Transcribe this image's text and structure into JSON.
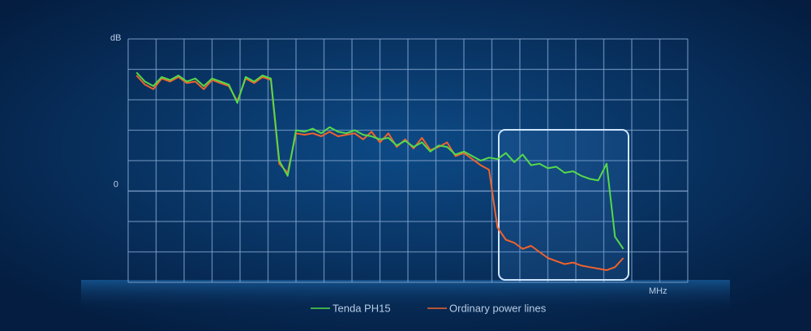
{
  "chart_data": {
    "type": "line",
    "y_label": "dB",
    "x_label": "MHz",
    "x": [
      0.3,
      0.6,
      0.9,
      1.2,
      1.5,
      1.8,
      2.1,
      2.4,
      2.7,
      3.0,
      3.3,
      3.6,
      3.9,
      4.2,
      4.5,
      4.8,
      5.1,
      5.4,
      5.7,
      6.0,
      6.3,
      6.6,
      6.9,
      7.2,
      7.5,
      7.8,
      8.1,
      8.4,
      8.7,
      9.0,
      9.3,
      9.6,
      9.9,
      10.2,
      10.5,
      10.8,
      11.1,
      11.4,
      11.7,
      12.0,
      12.3,
      12.6,
      12.9,
      13.2,
      13.5,
      13.8,
      14.1,
      14.4,
      14.7,
      15.0,
      15.3,
      15.6,
      15.9,
      16.2,
      16.5,
      16.8,
      17.1,
      17.4,
      17.7
    ],
    "xlim": [
      0,
      20
    ],
    "ylim": [
      -3,
      5
    ],
    "yticks": [
      0
    ],
    "grid": true,
    "series": [
      {
        "name": "Ordinary power lines",
        "color": "#f0622c",
        "values": [
          3.8,
          3.5,
          3.35,
          3.7,
          3.6,
          3.75,
          3.55,
          3.6,
          3.35,
          3.65,
          3.55,
          3.45,
          2.95,
          3.7,
          3.55,
          3.75,
          3.65,
          0.9,
          0.6,
          1.9,
          1.85,
          1.9,
          1.8,
          1.95,
          1.8,
          1.85,
          1.9,
          1.7,
          1.95,
          1.6,
          1.9,
          1.45,
          1.7,
          1.4,
          1.75,
          1.35,
          1.45,
          1.6,
          1.15,
          1.25,
          1.05,
          0.85,
          0.7,
          -1.2,
          -1.6,
          -1.7,
          -1.9,
          -1.8,
          -2.0,
          -2.2,
          -2.3,
          -2.4,
          -2.35,
          -2.45,
          -2.5,
          -2.55,
          -2.6,
          -2.5,
          -2.2
        ]
      },
      {
        "name": "Tenda PH15",
        "color": "#55d94a",
        "values": [
          3.9,
          3.6,
          3.45,
          3.75,
          3.65,
          3.8,
          3.6,
          3.7,
          3.45,
          3.7,
          3.6,
          3.5,
          2.9,
          3.75,
          3.6,
          3.8,
          3.7,
          1.0,
          0.5,
          2.0,
          1.95,
          2.05,
          1.9,
          2.1,
          1.95,
          1.9,
          2.0,
          1.85,
          1.8,
          1.7,
          1.75,
          1.5,
          1.65,
          1.45,
          1.6,
          1.3,
          1.5,
          1.45,
          1.2,
          1.3,
          1.15,
          1.0,
          1.1,
          1.05,
          1.25,
          0.95,
          1.2,
          0.85,
          0.9,
          0.75,
          0.8,
          0.6,
          0.65,
          0.5,
          0.4,
          0.35,
          0.9,
          -1.5,
          -1.9
        ]
      }
    ]
  }
}
